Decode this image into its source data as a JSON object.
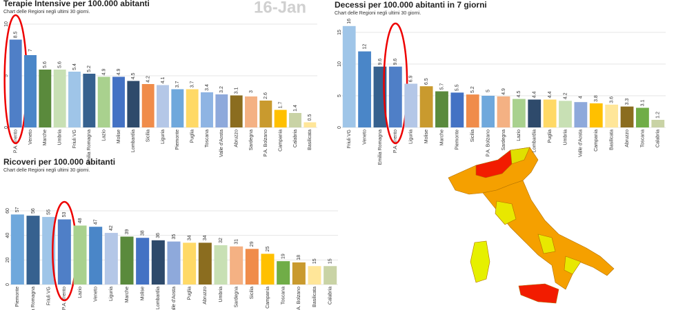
{
  "date": "16-Jan",
  "chart_data": [
    {
      "type": "bar",
      "title": "Terapie Intensive per 100.000 abitanti",
      "subtitle": "Chart delle Regioni negli ultimi 30 giorni.",
      "categories": [
        "P.A. Trento",
        "Veneto",
        "Marche",
        "Umbria",
        "Friuli VG",
        "Emilia Romagna",
        "Lazio",
        "Molise",
        "Lombardia",
        "Sicilia",
        "Liguria",
        "Piemonte",
        "Puglia",
        "Toscana",
        "Valle d'Aosta",
        "Abruzzo",
        "Sardegna",
        "P.A. Bolzano",
        "Campania",
        "Calabria",
        "Basilicata"
      ],
      "values": [
        8.5,
        7,
        5.6,
        5.6,
        5.4,
        5.2,
        4.9,
        4.9,
        4.5,
        4.2,
        4.1,
        3.7,
        3.7,
        3.4,
        3.2,
        3.1,
        3,
        2.6,
        1.7,
        1.4,
        0.5
      ],
      "colors": [
        "#4f7fc7",
        "#4a86c8",
        "#5a8a3c",
        "#c8e0b4",
        "#9fc5e8",
        "#36618f",
        "#a9d18e",
        "#4472c4",
        "#2e4a6b",
        "#f08c4a",
        "#b4c7e7",
        "#6fa8dc",
        "#ffd966",
        "#8eb4e3",
        "#8ea9db",
        "#8b6d1f",
        "#f4b183",
        "#c99a2e",
        "#ffc000",
        "#c9d3a5",
        "#ffe699"
      ],
      "ylim": [
        0,
        10
      ],
      "yticks": [
        0,
        5,
        10
      ],
      "grid": true
    },
    {
      "type": "bar",
      "title": "Decessi per 100.000 abitanti in 7 giorni",
      "subtitle": "Chart delle Regioni negli ultimi 30 giorni.",
      "categories": [
        "Friuli VG",
        "Veneto",
        "Emilia Romagna",
        "P.A. Trento",
        "Liguria",
        "Molise",
        "Marche",
        "Piemonte",
        "Sicilia",
        "P.A. Bolzano",
        "Sardegna",
        "Lazio",
        "Lombardia",
        "Puglia",
        "Umbria",
        "Valle d'Aosta",
        "Campania",
        "Basilicata",
        "Abruzzo",
        "Toscana",
        "Calabria"
      ],
      "values": [
        16,
        12,
        9.6,
        9.6,
        6.9,
        6.5,
        5.7,
        5.5,
        5.2,
        5,
        4.9,
        4.5,
        4.4,
        4.4,
        4.2,
        4,
        3.8,
        3.6,
        3.3,
        3.1,
        1.2
      ],
      "colors": [
        "#9fc5e8",
        "#4a86c8",
        "#36618f",
        "#4f7fc7",
        "#b4c7e7",
        "#c99a2e",
        "#5a8a3c",
        "#4472c4",
        "#f08c4a",
        "#6fa8dc",
        "#f4b183",
        "#a9d18e",
        "#2e4a6b",
        "#ffd966",
        "#c8e0b4",
        "#8ea9db",
        "#ffc000",
        "#ffe699",
        "#8b6d1f",
        "#70ad47",
        "#c9d3a5"
      ],
      "ylim": [
        0,
        15
      ],
      "yticks": [
        0,
        5,
        10,
        15
      ],
      "grid": true
    },
    {
      "type": "bar",
      "title": "Ricoveri per 100.000 abitanti",
      "subtitle": "Chart delle Regioni negli ultimi 30 giorni.",
      "categories": [
        "Piemonte",
        "Emilia Romagna",
        "Friuli VG",
        "P.A. Trento",
        "Lazio",
        "Veneto",
        "Liguria",
        "Marche",
        "Molise",
        "Lombardia",
        "Valle d'Aosta",
        "Puglia",
        "Abruzzo",
        "Umbria",
        "Sardegna",
        "Sicilia",
        "Campania",
        "Toscana",
        "P.A. Bolzano",
        "Basilicata",
        "Calabria"
      ],
      "values": [
        57,
        56,
        55,
        53,
        48,
        47,
        42,
        39,
        38,
        36,
        35,
        34,
        34,
        32,
        31,
        29,
        25,
        19,
        18,
        15,
        15
      ],
      "colors": [
        "#6fa8dc",
        "#36618f",
        "#9fc5e8",
        "#4f7fc7",
        "#a9d18e",
        "#4a86c8",
        "#b4c7e7",
        "#5a8a3c",
        "#4472c4",
        "#2e4a6b",
        "#8ea9db",
        "#ffd966",
        "#8b6d1f",
        "#c8e0b4",
        "#f4b183",
        "#f08c4a",
        "#ffc000",
        "#70ad47",
        "#c99a2e",
        "#ffe699",
        "#c9d3a5"
      ],
      "ylim": [
        0,
        60
      ],
      "yticks": [
        0,
        20,
        40,
        60
      ],
      "grid": true
    }
  ]
}
